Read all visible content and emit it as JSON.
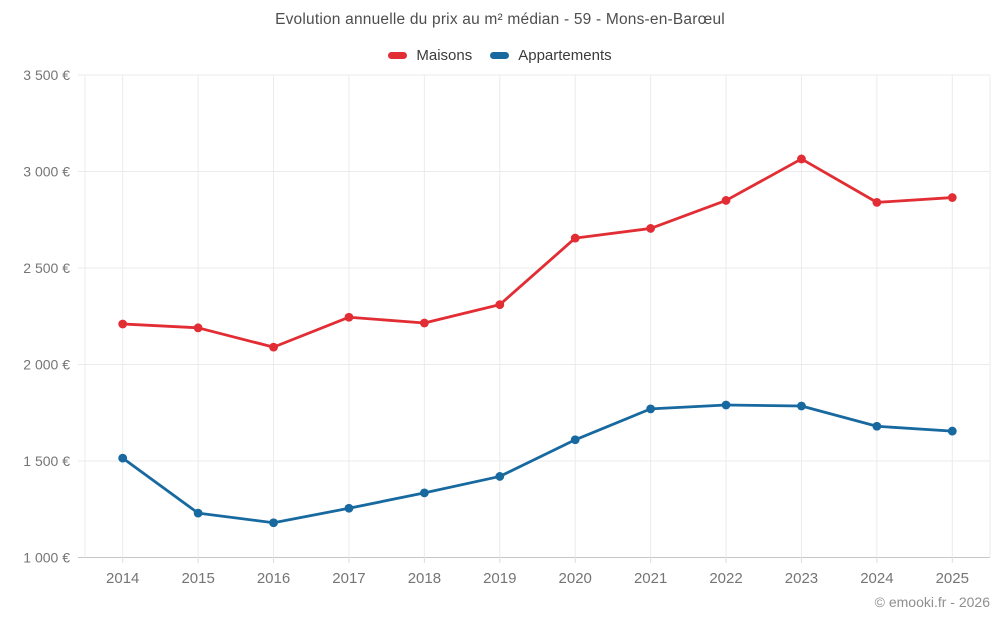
{
  "chart_data": {
    "type": "line",
    "title": "Evolution annuelle du prix au m² médian - 59 - Mons-en-Barœul",
    "watermark": "© emooki.fr - 2026",
    "x": [
      2014,
      2015,
      2016,
      2017,
      2018,
      2019,
      2020,
      2021,
      2022,
      2023,
      2024,
      2025
    ],
    "series": [
      {
        "name": "Maisons",
        "color": "#e12d33",
        "values": [
          2210,
          2190,
          2090,
          2245,
          2215,
          2310,
          2655,
          2705,
          2850,
          3065,
          2840,
          2865
        ]
      },
      {
        "name": "Appartements",
        "color": "#17699f",
        "values": [
          1515,
          1230,
          1180,
          1255,
          1335,
          1420,
          1610,
          1770,
          1790,
          1785,
          1680,
          1655
        ]
      }
    ],
    "ylim": [
      1000,
      3500
    ],
    "y_ticks": [
      {
        "value": 1000,
        "label": "1 000 €"
      },
      {
        "value": 1500,
        "label": "1 500 €"
      },
      {
        "value": 2000,
        "label": "2 000 €"
      },
      {
        "value": 2500,
        "label": "2 500 €"
      },
      {
        "value": 3000,
        "label": "3 000 €"
      },
      {
        "value": 3500,
        "label": "3 500 €"
      }
    ],
    "grid": true,
    "legend_position": "top"
  },
  "style": {
    "grid_color": "#ebebeb",
    "axis_color": "#c6c6c6",
    "tick_color": "#dcdcdc"
  }
}
